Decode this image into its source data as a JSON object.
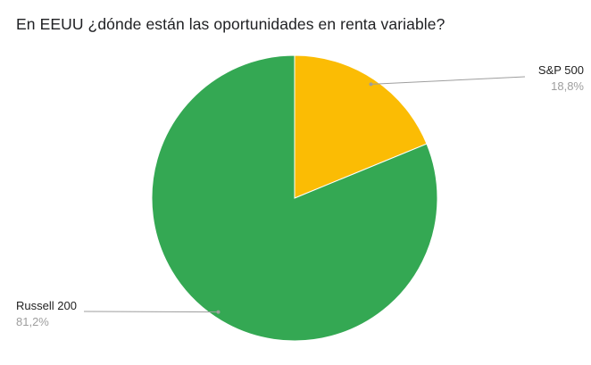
{
  "title": "En EEUU ¿dónde están las oportunidades en renta variable?",
  "chart_data": {
    "type": "pie",
    "title": "En EEUU ¿dónde están las oportunidades en renta variable?",
    "categories": [
      "S&P 500",
      "Russell 200"
    ],
    "values": [
      18.8,
      81.2
    ],
    "series": [
      {
        "label": "S&P 500",
        "value": 18.8,
        "percent_label": "18,8%",
        "color": "#FBBC04"
      },
      {
        "label": "Russell 200",
        "value": 81.2,
        "percent_label": "81,2%",
        "color": "#34A853"
      }
    ],
    "start_angle_deg": 0,
    "direction": "clockwise",
    "legend_position": "labeled-callouts",
    "background_color": "#FFFFFF",
    "callout_line_color": "#9e9e9e"
  }
}
